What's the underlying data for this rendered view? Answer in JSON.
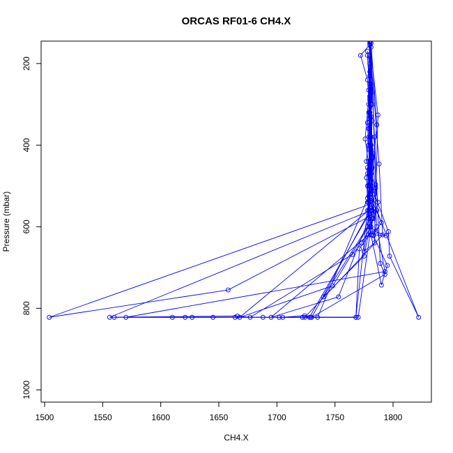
{
  "chart_data": {
    "type": "line",
    "title": "ORCAS RF01-6 CH4.X",
    "xlabel": "CH4.X",
    "ylabel": "Pressure (mbar)",
    "xlim": [
      1497,
      1833
    ],
    "ylim": [
      1030,
      145
    ],
    "y_reversed": true,
    "x_ticks": [
      "1500",
      "1550",
      "1600",
      "1650",
      "1700",
      "1750",
      "1800"
    ],
    "y_ticks": [
      "200",
      "400",
      "600",
      "800",
      "1000"
    ],
    "grid": false,
    "legend": "none",
    "markers": "open-circle",
    "series": [
      {
        "color": "#0000ff",
        "points": [
          [
            1780,
            145
          ],
          [
            1781,
            300
          ],
          [
            1779,
            460
          ],
          [
            1784,
            520
          ],
          [
            1796,
            612
          ],
          [
            1797,
            672
          ],
          [
            1822,
            822
          ],
          [
            1786,
            560
          ],
          [
            1781,
            510
          ],
          [
            1780,
            280
          ],
          [
            1782,
            430
          ],
          [
            1778,
            560
          ],
          [
            1768,
            822
          ],
          [
            1702,
            822
          ],
          [
            1722,
            822
          ],
          [
            1770,
            822
          ],
          [
            1782,
            580
          ],
          [
            1780,
            220
          ],
          [
            1779,
            400
          ],
          [
            1785,
            612
          ],
          [
            1794,
            622
          ],
          [
            1783,
            620
          ],
          [
            1790,
            590
          ],
          [
            1781,
            530
          ],
          [
            1778,
            540
          ],
          [
            1780,
            470
          ],
          [
            1776,
            385
          ],
          [
            1780,
            250
          ],
          [
            1781,
            330
          ],
          [
            1783,
            570
          ],
          [
            1658,
            755
          ],
          [
            1504,
            822
          ],
          [
            1780,
            545
          ],
          [
            1786,
            350
          ],
          [
            1781,
            150
          ],
          [
            1772,
            180
          ],
          [
            1778,
            240
          ],
          [
            1780,
            330
          ],
          [
            1779,
            380
          ],
          [
            1777,
            440
          ],
          [
            1781,
            470
          ],
          [
            1785,
            505
          ],
          [
            1780,
            600
          ],
          [
            1775,
            672
          ],
          [
            1740,
            772
          ],
          [
            1778,
            600
          ],
          [
            1780,
            520
          ],
          [
            1783,
            420
          ],
          [
            1779,
            360
          ],
          [
            1782,
            300
          ],
          [
            1781,
            250
          ],
          [
            1780,
            200
          ],
          [
            1778,
            170
          ],
          [
            1780,
            290
          ],
          [
            1781,
            400
          ],
          [
            1782,
            560
          ],
          [
            1753,
            772
          ],
          [
            1695,
            822
          ],
          [
            1779,
            620
          ],
          [
            1780,
            540
          ],
          [
            1778,
            470
          ],
          [
            1781,
            410
          ],
          [
            1780,
            360
          ],
          [
            1779,
            300
          ],
          [
            1781,
            160
          ],
          [
            1780,
            390
          ],
          [
            1778,
            500
          ],
          [
            1779,
            560
          ],
          [
            1783,
            622
          ],
          [
            1795,
            695
          ],
          [
            1790,
            743
          ],
          [
            1781,
            620
          ],
          [
            1779,
            540
          ],
          [
            1780,
            480
          ],
          [
            1781,
            435
          ],
          [
            1780,
            380
          ],
          [
            1779,
            320
          ],
          [
            1782,
            270
          ],
          [
            1780,
            230
          ],
          [
            1781,
            150
          ],
          [
            1785,
            497
          ],
          [
            1787,
            540
          ],
          [
            1781,
            600
          ],
          [
            1773,
            640
          ],
          [
            1765,
            668
          ],
          [
            1677,
            822
          ],
          [
            1666,
            819
          ],
          [
            1556,
            822
          ],
          [
            1781,
            560
          ],
          [
            1780,
            490
          ],
          [
            1779,
            440
          ],
          [
            1781,
            380
          ],
          [
            1780,
            320
          ],
          [
            1779,
            265
          ],
          [
            1780,
            145
          ],
          [
            1782,
            432
          ],
          [
            1783,
            580
          ],
          [
            1748,
            745
          ],
          [
            1668,
            822
          ],
          [
            1779,
            560
          ],
          [
            1780,
            500
          ],
          [
            1778,
            455
          ],
          [
            1781,
            400
          ],
          [
            1782,
            340
          ],
          [
            1780,
            280
          ],
          [
            1780,
            155
          ],
          [
            1788,
            446
          ],
          [
            1791,
            620
          ],
          [
            1724,
            822
          ],
          [
            1728,
            822
          ],
          [
            1779,
            570
          ],
          [
            1778,
            530
          ],
          [
            1777,
            480
          ],
          [
            1781,
            420
          ],
          [
            1780,
            350
          ],
          [
            1781,
            290
          ],
          [
            1778,
            180
          ],
          [
            1786,
            600
          ],
          [
            1793,
            710
          ],
          [
            1570,
            822
          ],
          [
            1610,
            822
          ],
          [
            1621,
            822
          ],
          [
            1627,
            822
          ],
          [
            1645,
            822
          ],
          [
            1664,
            822
          ],
          [
            1688,
            822
          ],
          [
            1705,
            822
          ],
          [
            1724,
            818
          ],
          [
            1729,
            822
          ],
          [
            1735,
            822
          ],
          [
            1779,
            525
          ],
          [
            1780,
            460
          ],
          [
            1779,
            410
          ],
          [
            1778,
            345
          ],
          [
            1780,
            285
          ],
          [
            1780,
            150
          ],
          [
            1787,
            326
          ],
          [
            1784,
            640
          ],
          [
            1775,
            660
          ],
          [
            1779,
            580
          ],
          [
            1781,
            510
          ],
          [
            1782,
            455
          ],
          [
            1780,
            395
          ],
          [
            1780,
            335
          ],
          [
            1781,
            260
          ],
          [
            1780,
            150
          ],
          [
            1784,
            380
          ],
          [
            1789,
            690
          ],
          [
            1793,
            717
          ],
          [
            1730,
            822
          ],
          [
            1780,
            560
          ],
          [
            1779,
            500
          ],
          [
            1780,
            440
          ],
          [
            1781,
            380
          ],
          [
            1780,
            320
          ],
          [
            1780,
            145
          ],
          [
            1782,
            610
          ],
          [
            1771,
            654
          ],
          [
            1768,
            822
          ],
          [
            1560,
            822
          ]
        ]
      }
    ]
  }
}
